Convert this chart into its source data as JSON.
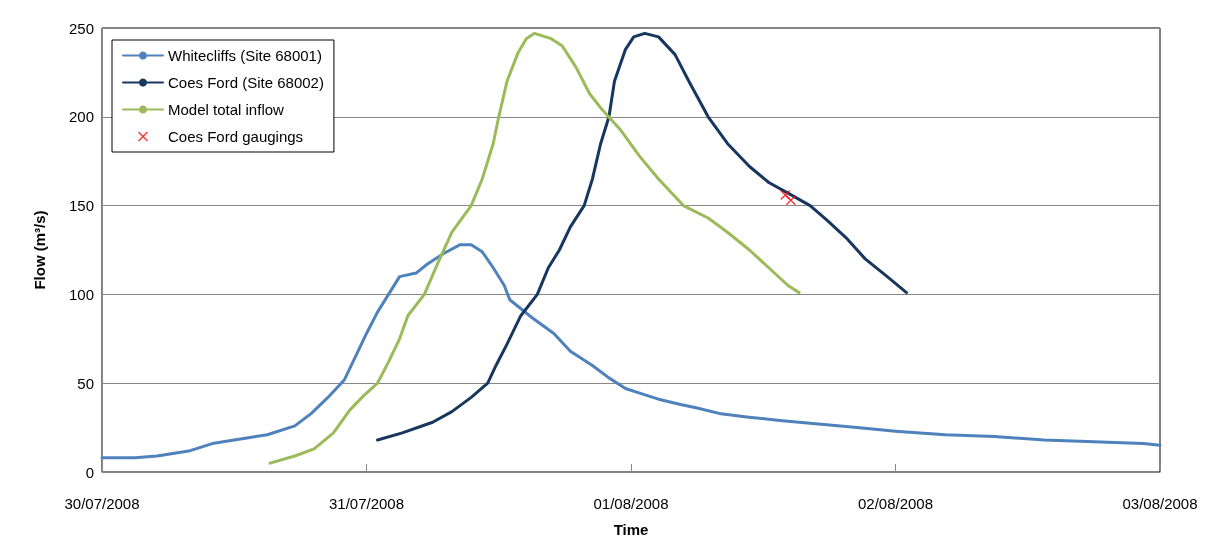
{
  "chart_data": {
    "type": "line",
    "xlabel": "Time",
    "ylabel": "Flow (m³/s)",
    "xlim": [
      "2008-07-30T00:00",
      "2008-08-03T00:00"
    ],
    "xticks": [
      {
        "value": "2008-07-30T00:00",
        "label": "30/07/2008"
      },
      {
        "value": "2008-07-31T00:00",
        "label": "31/07/2008"
      },
      {
        "value": "2008-08-01T00:00",
        "label": "01/08/2008"
      },
      {
        "value": "2008-08-02T00:00",
        "label": "02/08/2008"
      },
      {
        "value": "2008-08-03T00:00",
        "label": "03/08/2008"
      }
    ],
    "ylim": [
      0,
      250
    ],
    "yticks": [
      0,
      50,
      100,
      150,
      200,
      250
    ],
    "grid": "y",
    "legend": "top left",
    "marker": "none",
    "line_style": "solid",
    "series": [
      {
        "name": "Whitecliffs (Site 68001)",
        "color": "#4f81bd",
        "x": [
          "2008-07-30T00:00",
          "2008-07-30T03:00",
          "2008-07-30T05:00",
          "2008-07-30T08:00",
          "2008-07-30T10:00",
          "2008-07-30T13:00",
          "2008-07-30T15:00",
          "2008-07-30T17:30",
          "2008-07-30T19:00",
          "2008-07-30T20:30",
          "2008-07-30T22:00",
          "2008-07-30T23:00",
          "2008-07-31T00:00",
          "2008-07-31T01:00",
          "2008-07-31T02:00",
          "2008-07-31T03:00",
          "2008-07-31T04:30",
          "2008-07-31T05:30",
          "2008-07-31T07:00",
          "2008-07-31T08:30",
          "2008-07-31T09:30",
          "2008-07-31T10:30",
          "2008-07-31T11:30",
          "2008-07-31T12:30",
          "2008-07-31T13:00",
          "2008-07-31T15:00",
          "2008-07-31T17:00",
          "2008-07-31T18:30",
          "2008-07-31T20:30",
          "2008-07-31T22:00",
          "2008-07-31T23:30",
          "2008-08-01T01:00",
          "2008-08-01T02:30",
          "2008-08-01T04:30",
          "2008-08-01T06:00",
          "2008-08-01T08:00",
          "2008-08-01T10:30",
          "2008-08-01T13:30",
          "2008-08-01T17:00",
          "2008-08-01T20:30",
          "2008-08-02T00:00",
          "2008-08-02T04:30",
          "2008-08-02T09:00",
          "2008-08-02T13:30",
          "2008-08-02T18:00",
          "2008-08-02T22:30",
          "2008-08-03T00:00"
        ],
        "values": [
          8,
          8,
          9,
          12,
          16,
          19,
          21,
          26,
          33,
          42,
          52,
          65,
          78,
          90,
          100,
          110,
          112,
          117,
          123,
          128,
          128,
          124,
          115,
          105,
          97,
          87,
          78,
          68,
          60,
          53,
          47,
          44,
          41,
          38,
          36,
          33,
          31,
          29,
          27,
          25,
          23,
          21,
          20,
          18,
          17,
          16,
          15
        ]
      },
      {
        "name": "Coes Ford (Site 68002)",
        "color": "#17375e",
        "x": [
          "2008-07-31T01:00",
          "2008-07-31T03:15",
          "2008-07-31T06:00",
          "2008-07-31T07:45",
          "2008-07-31T09:30",
          "2008-07-31T11:00",
          "2008-07-31T11:45",
          "2008-07-31T12:45",
          "2008-07-31T14:00",
          "2008-07-31T15:30",
          "2008-07-31T16:30",
          "2008-07-31T17:30",
          "2008-07-31T18:30",
          "2008-07-31T19:45",
          "2008-07-31T20:30",
          "2008-07-31T21:15",
          "2008-07-31T22:00",
          "2008-07-31T22:30",
          "2008-07-31T23:30",
          "2008-08-01T00:15",
          "2008-08-01T01:15",
          "2008-08-01T02:30",
          "2008-08-01T04:00",
          "2008-08-01T05:15",
          "2008-08-01T07:00",
          "2008-08-01T08:45",
          "2008-08-01T10:45",
          "2008-08-01T12:30",
          "2008-08-01T14:15",
          "2008-08-01T16:15",
          "2008-08-01T17:45",
          "2008-08-01T19:30",
          "2008-08-01T21:15",
          "2008-08-01T23:15",
          "2008-08-02T01:00"
        ],
        "values": [
          18,
          22,
          28,
          34,
          42,
          50,
          60,
          72,
          88,
          100,
          115,
          125,
          138,
          150,
          165,
          185,
          200,
          220,
          238,
          245,
          247,
          245,
          235,
          220,
          200,
          185,
          172,
          163,
          157,
          150,
          142,
          132,
          120,
          110,
          101
        ]
      },
      {
        "name": "Model total inflow",
        "color": "#9bbb59",
        "x": [
          "2008-07-30T15:15",
          "2008-07-30T17:30",
          "2008-07-30T19:15",
          "2008-07-30T21:00",
          "2008-07-30T22:30",
          "2008-07-30T23:45",
          "2008-07-31T01:00",
          "2008-07-31T02:00",
          "2008-07-31T03:00",
          "2008-07-31T03:45",
          "2008-07-31T05:15",
          "2008-07-31T06:30",
          "2008-07-31T07:45",
          "2008-07-31T09:30",
          "2008-07-31T10:30",
          "2008-07-31T11:30",
          "2008-07-31T12:00",
          "2008-07-31T12:45",
          "2008-07-31T13:45",
          "2008-07-31T14:30",
          "2008-07-31T15:15",
          "2008-07-31T16:45",
          "2008-07-31T17:45",
          "2008-07-31T19:00",
          "2008-07-31T20:15",
          "2008-07-31T21:15",
          "2008-07-31T23:00",
          "2008-08-01T00:45",
          "2008-08-01T02:30",
          "2008-08-01T04:45",
          "2008-08-01T07:00",
          "2008-08-01T08:45",
          "2008-08-01T10:45",
          "2008-08-01T12:30",
          "2008-08-01T14:15",
          "2008-08-01T15:15"
        ],
        "values": [
          5,
          9,
          13,
          22,
          35,
          43,
          50,
          62,
          75,
          88,
          100,
          118,
          135,
          150,
          165,
          185,
          200,
          220,
          236,
          244,
          247,
          244,
          240,
          228,
          213,
          205,
          193,
          178,
          165,
          150,
          143,
          135,
          125,
          115,
          105,
          101
        ]
      },
      {
        "name": "Coes Ford gaugings",
        "type": "scatter",
        "color": "#ff0000",
        "marker": "cross",
        "x": [
          "2008-08-01T14:00",
          "2008-08-01T14:30"
        ],
        "values": [
          156,
          153
        ]
      }
    ]
  }
}
